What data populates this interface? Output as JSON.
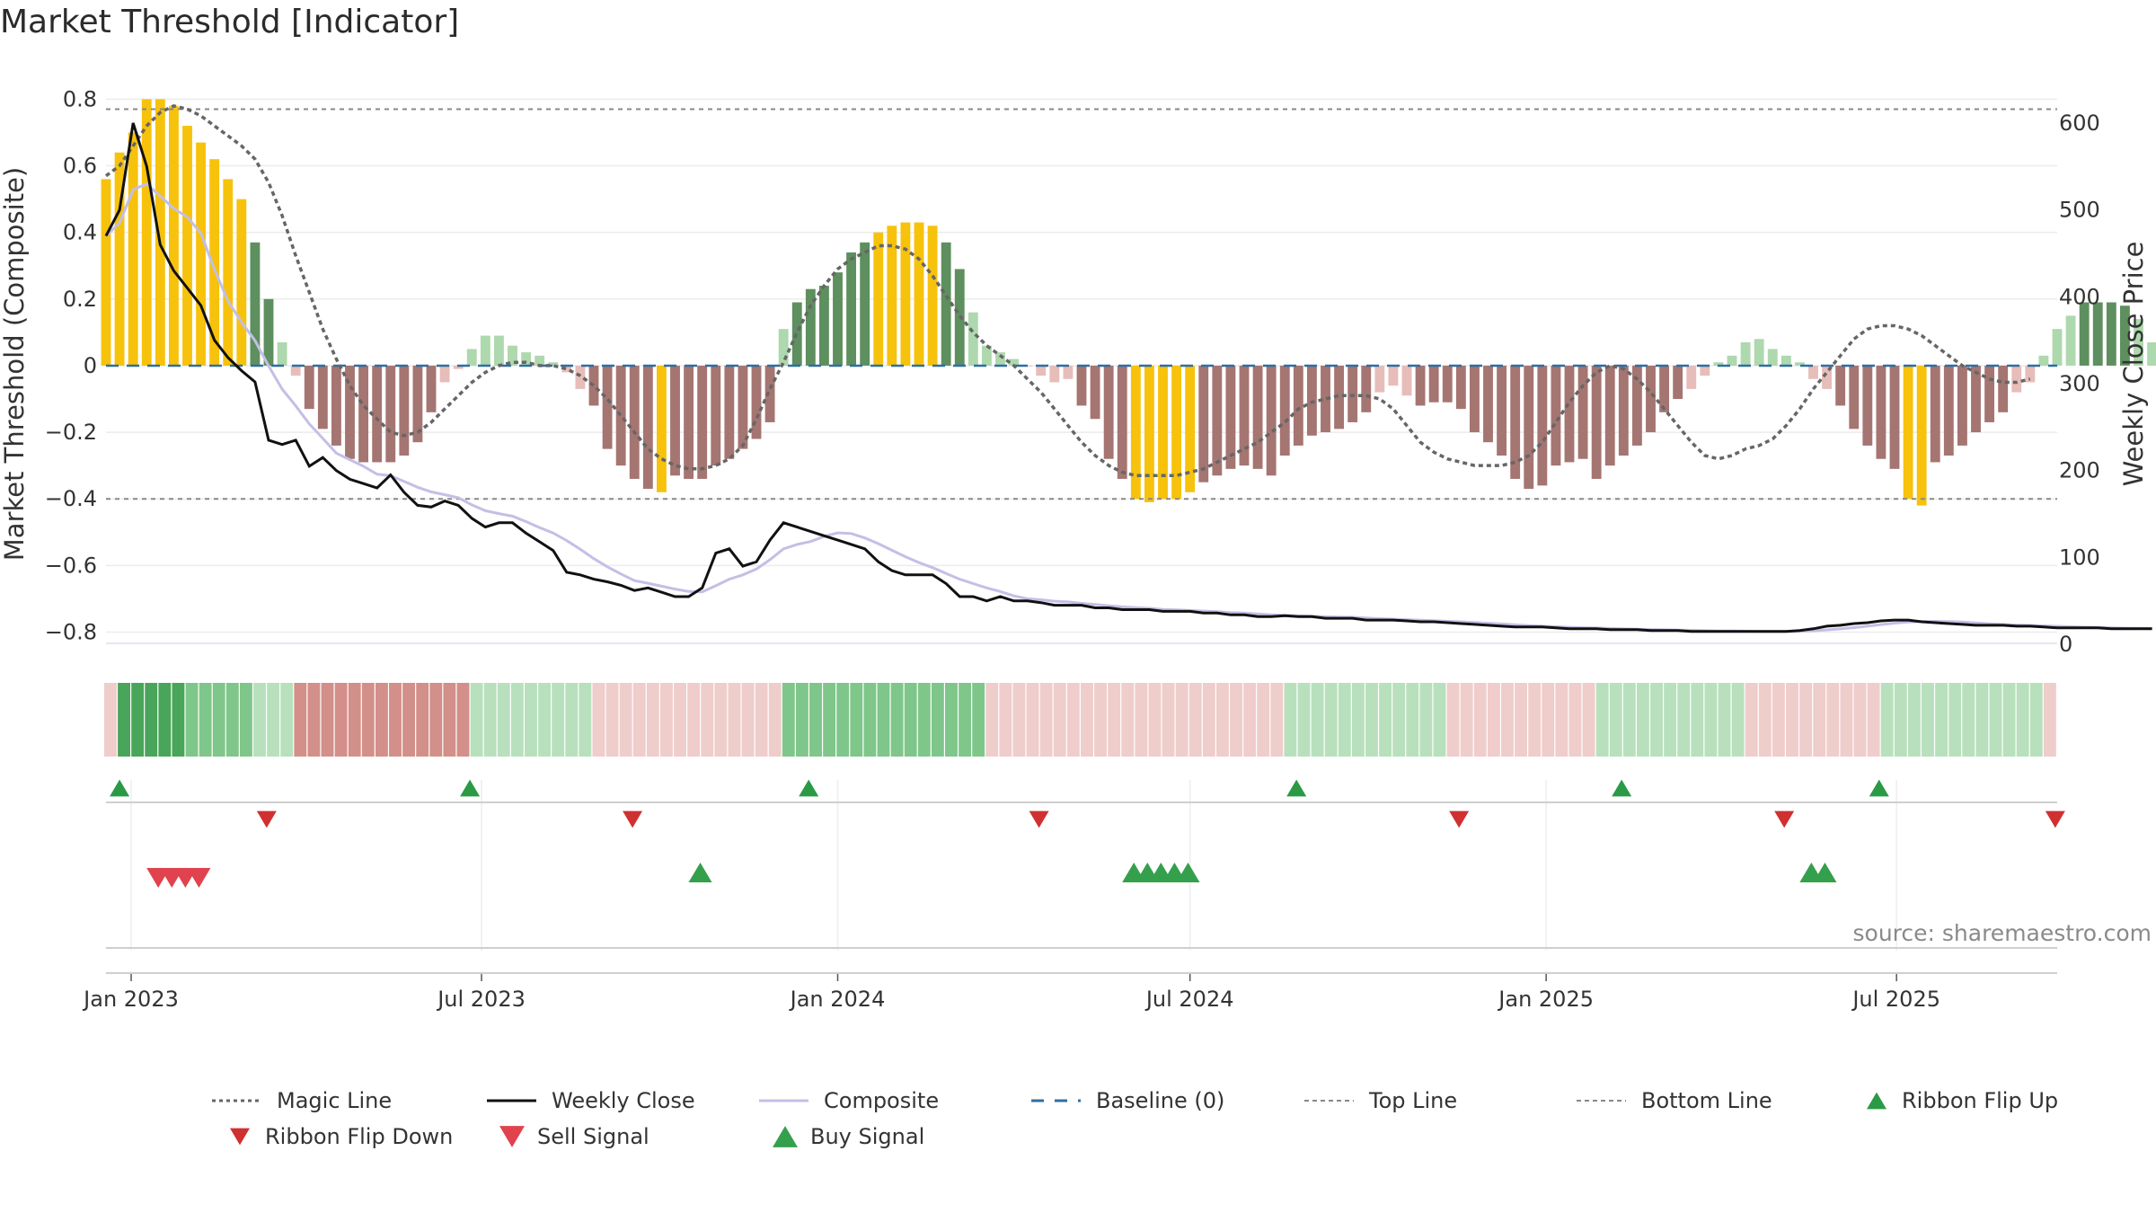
{
  "title": "Market Threshold [Indicator]",
  "source": "source: sharemaestro.com",
  "colors": {
    "strong_pos": "#5e8f5e",
    "light_pos": "#aed8ad",
    "strong_neg": "#a57572",
    "light_neg": "#e7bdb9",
    "extreme": "#f7c20c",
    "magic": "#666666",
    "close": "#111111",
    "composite": "#c3bfe6",
    "baseline": "#2f6ea3",
    "ref_line": "#888888",
    "flip_up": "#2a9a45",
    "flip_down": "#d03030",
    "sell": "#e0424e",
    "buy": "#34a04c"
  },
  "chart_data": {
    "type": "bar",
    "title": "Market Threshold [Indicator]",
    "ylabel_left": "Market Threshold (Composite)",
    "ylabel_right": "Weekly Close Price",
    "ylim_left": [
      -0.85,
      0.82
    ],
    "ylim_right": [
      -5,
      635
    ],
    "yticks_left": [
      {
        "v": 0.8,
        "label": "0.8"
      },
      {
        "v": 0.6,
        "label": "0.6"
      },
      {
        "v": 0.4,
        "label": "0.4"
      },
      {
        "v": 0.2,
        "label": "0.2"
      },
      {
        "v": 0,
        "label": "0"
      },
      {
        "v": -0.2,
        "label": "−0.2"
      },
      {
        "v": -0.4,
        "label": "−0.4"
      },
      {
        "v": -0.6,
        "label": "−0.6"
      },
      {
        "v": -0.8,
        "label": "−0.8"
      }
    ],
    "yticks_right": [
      {
        "v": 600,
        "label": "600"
      },
      {
        "v": 500,
        "label": "500"
      },
      {
        "v": 400,
        "label": "400"
      },
      {
        "v": 300,
        "label": "300"
      },
      {
        "v": 200,
        "label": "200"
      },
      {
        "v": 100,
        "label": "100"
      },
      {
        "v": 0,
        "label": "0"
      }
    ],
    "x_range": [
      "2022-12-19",
      "2025-09-22"
    ],
    "xticks": [
      {
        "date": "2023-01-01",
        "label": "Jan 2023"
      },
      {
        "date": "2023-07-01",
        "label": "Jul 2023"
      },
      {
        "date": "2024-01-01",
        "label": "Jan 2024"
      },
      {
        "date": "2024-07-01",
        "label": "Jul 2024"
      },
      {
        "date": "2025-01-01",
        "label": "Jan 2025"
      },
      {
        "date": "2025-07-01",
        "label": "Jul 2025"
      }
    ],
    "start_date": "2022-12-19",
    "top_line": 0.77,
    "bottom_line": -0.4,
    "baseline": 0,
    "composite_bars": [
      0.56,
      0.64,
      0.7,
      0.8,
      0.8,
      0.78,
      0.72,
      0.67,
      0.62,
      0.56,
      0.5,
      0.37,
      0.2,
      0.07,
      -0.03,
      -0.13,
      -0.19,
      -0.24,
      -0.28,
      -0.29,
      -0.29,
      -0.29,
      -0.27,
      -0.23,
      -0.14,
      -0.05,
      -0.01,
      0.05,
      0.09,
      0.09,
      0.06,
      0.04,
      0.03,
      0.01,
      -0.02,
      -0.07,
      -0.12,
      -0.25,
      -0.3,
      -0.34,
      -0.37,
      -0.38,
      -0.33,
      -0.34,
      -0.34,
      -0.3,
      -0.28,
      -0.25,
      -0.22,
      -0.17,
      0.11,
      0.19,
      0.23,
      0.24,
      0.28,
      0.34,
      0.37,
      0.4,
      0.42,
      0.43,
      0.43,
      0.42,
      0.37,
      0.29,
      0.16,
      0.06,
      0.04,
      0.02,
      0.0,
      -0.03,
      -0.05,
      -0.04,
      -0.12,
      -0.16,
      -0.28,
      -0.34,
      -0.4,
      -0.41,
      -0.4,
      -0.4,
      -0.38,
      -0.35,
      -0.33,
      -0.31,
      -0.3,
      -0.31,
      -0.33,
      -0.27,
      -0.24,
      -0.21,
      -0.2,
      -0.19,
      -0.17,
      -0.14,
      -0.08,
      -0.06,
      -0.09,
      -0.12,
      -0.11,
      -0.11,
      -0.13,
      -0.2,
      -0.23,
      -0.27,
      -0.34,
      -0.37,
      -0.36,
      -0.3,
      -0.29,
      -0.28,
      -0.34,
      -0.3,
      -0.27,
      -0.24,
      -0.2,
      -0.14,
      -0.1,
      -0.07,
      -0.03,
      0.01,
      0.03,
      0.07,
      0.08,
      0.05,
      0.03,
      0.01,
      -0.04,
      -0.07,
      -0.12,
      -0.19,
      -0.24,
      -0.28,
      -0.31,
      -0.4,
      -0.42,
      -0.29,
      -0.27,
      -0.24,
      -0.2,
      -0.17,
      -0.14,
      -0.08,
      -0.05,
      0.03,
      0.11,
      0.15,
      0.19,
      0.19,
      0.19,
      0.18,
      0.14,
      0.07,
      0.0,
      -0.03,
      -0.09
    ],
    "magic_line": [
      0.57,
      0.6,
      0.66,
      0.72,
      0.76,
      0.78,
      0.77,
      0.75,
      0.72,
      0.69,
      0.66,
      0.62,
      0.55,
      0.45,
      0.33,
      0.22,
      0.11,
      0.02,
      -0.06,
      -0.12,
      -0.16,
      -0.2,
      -0.21,
      -0.2,
      -0.17,
      -0.13,
      -0.09,
      -0.05,
      -0.02,
      0.0,
      0.01,
      0.01,
      0.0,
      0.0,
      -0.01,
      -0.03,
      -0.06,
      -0.1,
      -0.15,
      -0.2,
      -0.25,
      -0.28,
      -0.3,
      -0.31,
      -0.31,
      -0.3,
      -0.28,
      -0.24,
      -0.16,
      -0.07,
      0.01,
      0.1,
      0.18,
      0.24,
      0.29,
      0.32,
      0.34,
      0.36,
      0.36,
      0.35,
      0.32,
      0.27,
      0.21,
      0.15,
      0.1,
      0.06,
      0.03,
      0.0,
      -0.04,
      -0.08,
      -0.13,
      -0.18,
      -0.23,
      -0.27,
      -0.3,
      -0.32,
      -0.33,
      -0.33,
      -0.33,
      -0.33,
      -0.32,
      -0.31,
      -0.29,
      -0.27,
      -0.25,
      -0.23,
      -0.2,
      -0.17,
      -0.13,
      -0.11,
      -0.1,
      -0.09,
      -0.09,
      -0.09,
      -0.1,
      -0.13,
      -0.18,
      -0.23,
      -0.26,
      -0.28,
      -0.29,
      -0.3,
      -0.3,
      -0.3,
      -0.29,
      -0.27,
      -0.23,
      -0.17,
      -0.11,
      -0.06,
      -0.02,
      0.0,
      -0.01,
      -0.04,
      -0.08,
      -0.13,
      -0.18,
      -0.23,
      -0.27,
      -0.28,
      -0.27,
      -0.25,
      -0.24,
      -0.22,
      -0.18,
      -0.13,
      -0.07,
      -0.02,
      0.03,
      0.08,
      0.11,
      0.12,
      0.12,
      0.11,
      0.09,
      0.06,
      0.03,
      0.0,
      -0.02,
      -0.04,
      -0.05,
      -0.05,
      -0.04
    ],
    "close": [
      470,
      500,
      600,
      550,
      460,
      430,
      410,
      390,
      350,
      330,
      315,
      302,
      235,
      230,
      235,
      205,
      215,
      200,
      190,
      185,
      180,
      195,
      175,
      160,
      158,
      165,
      160,
      145,
      135,
      140,
      140,
      128,
      118,
      108,
      83,
      80,
      75,
      72,
      68,
      62,
      65,
      60,
      55,
      55,
      65,
      105,
      110,
      90,
      95,
      120,
      140,
      135,
      130,
      125,
      120,
      115,
      110,
      95,
      85,
      80,
      80,
      80,
      70,
      55,
      55,
      50,
      55,
      50,
      50,
      48,
      45,
      45,
      45,
      42,
      42,
      40,
      40,
      40,
      38,
      38,
      38,
      36,
      36,
      34,
      34,
      32,
      32,
      33,
      32,
      32,
      30,
      30,
      30,
      28,
      28,
      28,
      27,
      26,
      26,
      25,
      24,
      23,
      22,
      21,
      20,
      20,
      20,
      19,
      18,
      18,
      18,
      17,
      17,
      17,
      16,
      16,
      16,
      15,
      15,
      15,
      15,
      15,
      15,
      15,
      15,
      16,
      18,
      21,
      22,
      24,
      25,
      27,
      28,
      28,
      26,
      25,
      24,
      23,
      22,
      22,
      22,
      21,
      21,
      20,
      19,
      19,
      19,
      19,
      18,
      18,
      18,
      18
    ],
    "series": [
      {
        "name": "Magic Line"
      },
      {
        "name": "Weekly Close"
      },
      {
        "name": "Composite"
      },
      {
        "name": "Baseline (0)"
      },
      {
        "name": "Top Line"
      },
      {
        "name": "Bottom Line"
      },
      {
        "name": "Ribbon Flip Up"
      },
      {
        "name": "Ribbon Flip Down"
      },
      {
        "name": "Sell Signal"
      },
      {
        "name": "Buy Signal"
      }
    ],
    "legend_position": "bottom",
    "ribbon_weeks": 144,
    "ribbon_segments": [
      {
        "from": 0,
        "to": 1,
        "level": -1
      },
      {
        "from": 1,
        "to": 6,
        "level": 3
      },
      {
        "from": 6,
        "to": 11,
        "level": 2
      },
      {
        "from": 11,
        "to": 14,
        "level": 1
      },
      {
        "from": 14,
        "to": 27,
        "level": -2
      },
      {
        "from": 27,
        "to": 36,
        "level": 1
      },
      {
        "from": 36,
        "to": 50,
        "level": -1
      },
      {
        "from": 50,
        "to": 65,
        "level": 2
      },
      {
        "from": 65,
        "to": 87,
        "level": -1
      },
      {
        "from": 87,
        "to": 99,
        "level": 1
      },
      {
        "from": 99,
        "to": 110,
        "level": -1
      },
      {
        "from": 110,
        "to": 121,
        "level": 1
      },
      {
        "from": 121,
        "to": 131,
        "level": -1
      },
      {
        "from": 131,
        "to": 143,
        "level": 1
      },
      {
        "from": 143,
        "to": 144,
        "level": -1
      }
    ],
    "ribbon_flip_up": [
      "2022-12-26",
      "2023-06-25",
      "2023-12-17",
      "2024-08-25",
      "2025-02-09",
      "2025-06-22"
    ],
    "ribbon_flip_down": [
      "2023-03-12",
      "2023-09-17",
      "2024-04-14",
      "2024-11-17",
      "2025-05-04",
      "2025-09-21"
    ],
    "sell_signal": [
      "2023-01-15",
      "2023-01-22",
      "2023-01-29",
      "2023-02-05"
    ],
    "buy_signal": [
      "2023-10-22",
      "2024-06-02",
      "2024-06-09",
      "2024-06-16",
      "2024-06-23",
      "2024-06-30",
      "2025-05-18",
      "2025-05-25"
    ]
  }
}
